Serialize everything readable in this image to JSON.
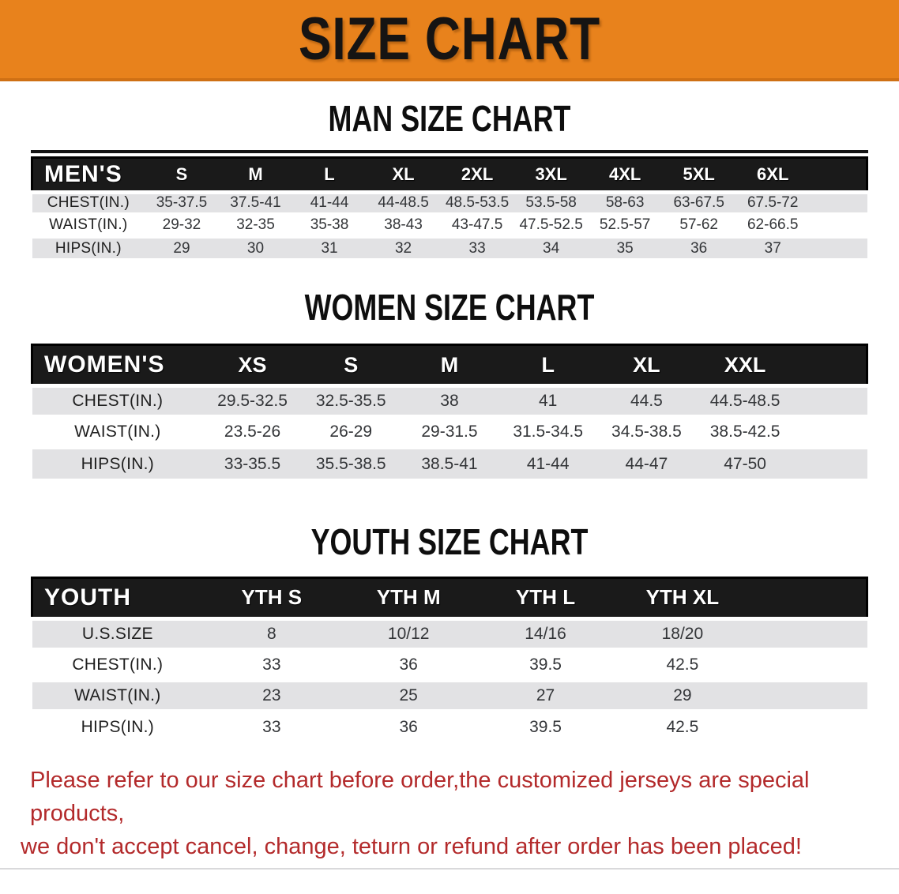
{
  "banner": {
    "title": "SIZE CHART"
  },
  "sections": [
    {
      "title": "MAN SIZE CHART",
      "table": {
        "header_label": "MEN'S",
        "columns": [
          "S",
          "M",
          "L",
          "XL",
          "2XL",
          "3XL",
          "4XL",
          "5XL",
          "6XL"
        ],
        "rows": [
          {
            "label": "CHEST(IN.)",
            "values": [
              "35-37.5",
              "37.5-41",
              "41-44",
              "44-48.5",
              "48.5-53.5",
              "53.5-58",
              "58-63",
              "63-67.5",
              "67.5-72"
            ]
          },
          {
            "label": "WAIST(IN.)",
            "values": [
              "29-32",
              "32-35",
              "35-38",
              "38-43",
              "43-47.5",
              "47.5-52.5",
              "52.5-57",
              "57-62",
              "62-66.5"
            ]
          },
          {
            "label": "HIPS(IN.)",
            "values": [
              "29",
              "30",
              "31",
              "32",
              "33",
              "34",
              "35",
              "36",
              "37"
            ]
          }
        ]
      }
    },
    {
      "title": "WOMEN SIZE CHART",
      "table": {
        "header_label": "WOMEN'S",
        "columns": [
          "XS",
          "S",
          "M",
          "L",
          "XL",
          "XXL"
        ],
        "rows": [
          {
            "label": "CHEST(IN.)",
            "values": [
              "29.5-32.5",
              "32.5-35.5",
              "38",
              "41",
              "44.5",
              "44.5-48.5"
            ]
          },
          {
            "label": "WAIST(IN.)",
            "values": [
              "23.5-26",
              "26-29",
              "29-31.5",
              "31.5-34.5",
              "34.5-38.5",
              "38.5-42.5"
            ]
          },
          {
            "label": "HIPS(IN.)",
            "values": [
              "33-35.5",
              "35.5-38.5",
              "38.5-41",
              "41-44",
              "44-47",
              "47-50"
            ]
          }
        ]
      }
    },
    {
      "title": "YOUTH SIZE CHART",
      "table": {
        "header_label": "YOUTH",
        "columns": [
          "YTH S",
          "YTH M",
          "YTH L",
          "YTH XL"
        ],
        "rows": [
          {
            "label": "U.S.SIZE",
            "values": [
              "8",
              "10/12",
              "14/16",
              "18/20"
            ]
          },
          {
            "label": "CHEST(IN.)",
            "values": [
              "33",
              "36",
              "39.5",
              "42.5"
            ]
          },
          {
            "label": "WAIST(IN.)",
            "values": [
              "23",
              "25",
              "27",
              "29"
            ]
          },
          {
            "label": "HIPS(IN.)",
            "values": [
              "33",
              "36",
              "39.5",
              "42.5"
            ]
          }
        ]
      }
    }
  ],
  "footer": {
    "line1": "Please refer to our size chart before order,the customized jerseys are special products,",
    "line2": "we don't accept cancel, change, teturn or refund after order has been placed!"
  },
  "colors": {
    "banner_bg": "#e8821c",
    "banner_text": "#161413",
    "band_bg": "#1a1a1a",
    "band_text": "#ffffff",
    "row_shade": "#e2e2e4",
    "row_plain": "#ffffff",
    "cell_text": "#333538",
    "footer_red": "#b32a2b",
    "page_bg": "#ffffff"
  }
}
